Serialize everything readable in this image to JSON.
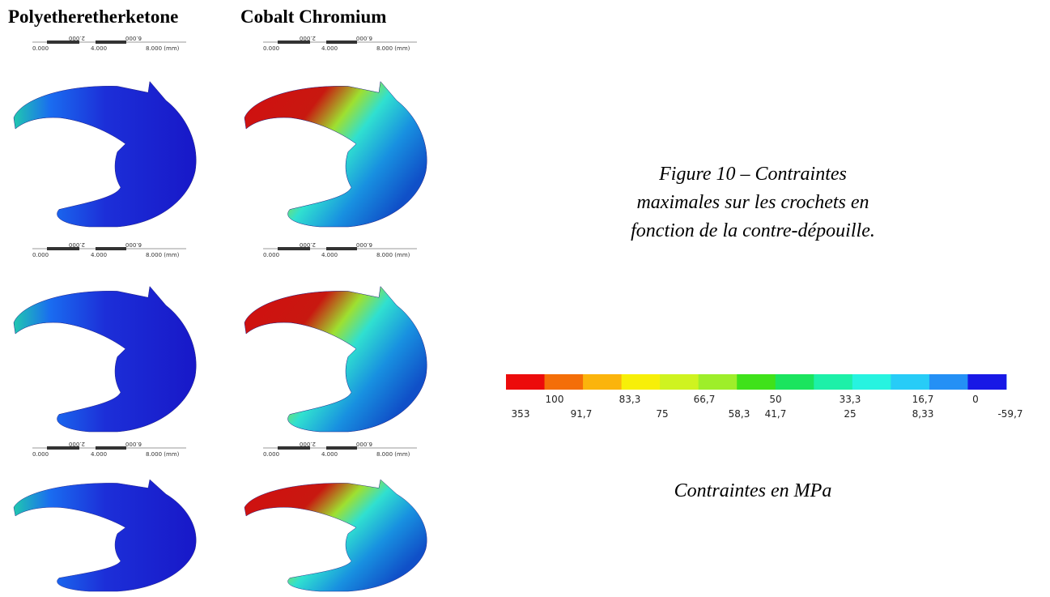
{
  "columns": [
    "Polyetheretherketone",
    "Cobalt Chromium"
  ],
  "scale_bar": {
    "labels_top": [
      "2.000",
      "6.000"
    ],
    "labels_bottom": [
      "0.000",
      "4.000",
      "8.000 (mm)"
    ]
  },
  "caption": [
    "Figure 10 – Contraintes",
    "maximales sur les crochets en",
    "fonction de la contre-dépouille."
  ],
  "legend": {
    "labels_top": [
      "100",
      "83,3",
      "66,7",
      "50",
      "33,3",
      "16,7",
      "0"
    ],
    "labels_bottom": [
      "353",
      "91,7",
      "75",
      "58,3",
      "41,7",
      "25",
      "8,33",
      "-59,7"
    ],
    "unit_label": "Contraintes en MPa"
  }
}
